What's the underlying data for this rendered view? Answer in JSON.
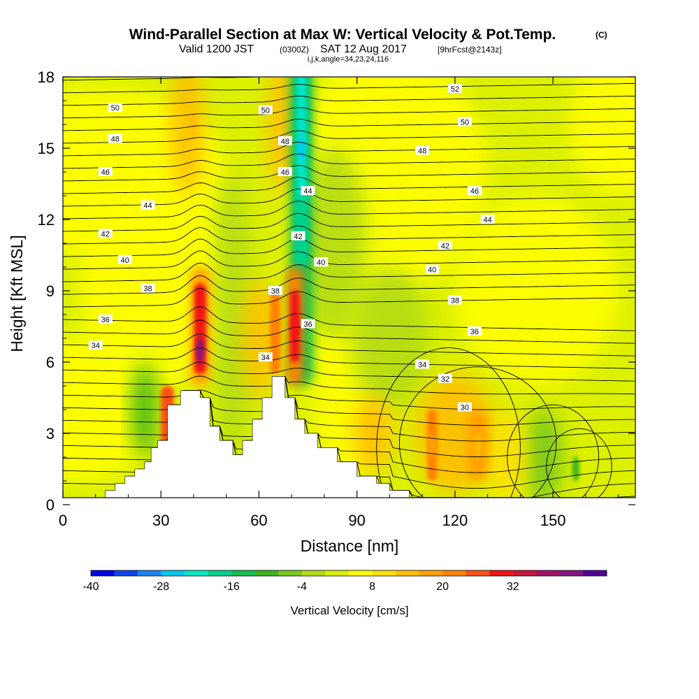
{
  "title": {
    "main": "Wind-Parallel Section at Max W: Vertical Velocity & Pot.Temp.",
    "unit_tag": "(C)",
    "valid_prefix": "Valid 1200 JST",
    "valid_utc": "(0300Z)",
    "valid_date": "SAT 12 Aug 2017",
    "forecast": "[9hrFcst@2143z]",
    "indices": "i,j,k,angle=34,23,24,116"
  },
  "chart_data": {
    "type": "heatmap",
    "xlabel": "Distance [nm]",
    "ylabel": "Height [Kft MSL]",
    "xlim": [
      0,
      175
    ],
    "ylim": [
      0,
      18
    ],
    "xticks": [
      0,
      30,
      60,
      90,
      120,
      150
    ],
    "yticks": [
      0,
      3,
      6,
      9,
      12,
      15,
      18
    ],
    "colorbar": {
      "title": "Vertical Velocity [cm/s]",
      "labels": [
        "-40",
        "-28",
        "-16",
        "-4",
        "8",
        "20",
        "32"
      ],
      "colors": [
        "#0000e6",
        "#0a46f0",
        "#1e82f0",
        "#00c8f0",
        "#00e6c8",
        "#00d28c",
        "#14be50",
        "#3cb41e",
        "#78c81e",
        "#b4dc14",
        "#dcf000",
        "#ffff00",
        "#ffe100",
        "#ffbe00",
        "#ffa000",
        "#ff8200",
        "#ff5014",
        "#f01414",
        "#c8143c",
        "#a01464",
        "#821482",
        "#500096"
      ]
    },
    "w_features": [
      {
        "x": 42,
        "z": 6.5,
        "w": 38
      },
      {
        "x": 71,
        "z": 7.5,
        "w": 28
      },
      {
        "x": 65,
        "z": 7.5,
        "w": 20
      },
      {
        "x": 73,
        "z": 15,
        "w": -30
      },
      {
        "x": 40,
        "z": 16,
        "w": 12
      },
      {
        "x": 113,
        "z": 2.5,
        "w": 14
      },
      {
        "x": 127,
        "z": 2.5,
        "w": 10
      },
      {
        "x": 157,
        "z": 1.5,
        "w": -12
      }
    ],
    "theta_labels": [
      {
        "v": "50",
        "x": 16,
        "z": 16.7
      },
      {
        "v": "50",
        "x": 62,
        "z": 16.6
      },
      {
        "v": "52",
        "x": 120,
        "z": 17.5
      },
      {
        "v": "50",
        "x": 123,
        "z": 16.1
      },
      {
        "v": "48",
        "x": 16,
        "z": 15.4
      },
      {
        "v": "48",
        "x": 68,
        "z": 15.3
      },
      {
        "v": "48",
        "x": 110,
        "z": 14.9
      },
      {
        "v": "46",
        "x": 13,
        "z": 14.0
      },
      {
        "v": "46",
        "x": 68,
        "z": 14.0
      },
      {
        "v": "46",
        "x": 126,
        "z": 13.2
      },
      {
        "v": "44",
        "x": 75,
        "z": 13.2
      },
      {
        "v": "44",
        "x": 26,
        "z": 12.6
      },
      {
        "v": "44",
        "x": 130,
        "z": 12.0
      },
      {
        "v": "42",
        "x": 13,
        "z": 11.4
      },
      {
        "v": "42",
        "x": 72,
        "z": 11.3
      },
      {
        "v": "42",
        "x": 117,
        "z": 10.9
      },
      {
        "v": "40",
        "x": 19,
        "z": 10.3
      },
      {
        "v": "40",
        "x": 79,
        "z": 10.2
      },
      {
        "v": "40",
        "x": 113,
        "z": 9.9
      },
      {
        "v": "38",
        "x": 26,
        "z": 9.1
      },
      {
        "v": "38",
        "x": 65,
        "z": 9.0
      },
      {
        "v": "38",
        "x": 120,
        "z": 8.6
      },
      {
        "v": "36",
        "x": 13,
        "z": 7.8
      },
      {
        "v": "36",
        "x": 75,
        "z": 7.6
      },
      {
        "v": "36",
        "x": 126,
        "z": 7.3
      },
      {
        "v": "34",
        "x": 10,
        "z": 6.7
      },
      {
        "v": "34",
        "x": 62,
        "z": 6.2
      },
      {
        "v": "34",
        "x": 110,
        "z": 5.9
      },
      {
        "v": "32",
        "x": 117,
        "z": 5.3
      },
      {
        "v": "30",
        "x": 123,
        "z": 4.1
      }
    ],
    "terrain": [
      [
        0,
        0.3
      ],
      [
        13,
        0.3
      ],
      [
        13,
        0.6
      ],
      [
        16,
        0.6
      ],
      [
        16,
        0.9
      ],
      [
        19,
        0.9
      ],
      [
        19,
        1.2
      ],
      [
        22,
        1.2
      ],
      [
        22,
        1.5
      ],
      [
        25,
        1.5
      ],
      [
        25,
        1.8
      ],
      [
        27,
        1.8
      ],
      [
        27,
        2.4
      ],
      [
        29,
        2.4
      ],
      [
        29,
        2.7
      ],
      [
        32,
        2.7
      ],
      [
        32,
        4.2
      ],
      [
        36,
        4.2
      ],
      [
        36,
        4.8
      ],
      [
        42,
        4.8
      ],
      [
        42,
        4.5
      ],
      [
        45,
        4.5
      ],
      [
        45,
        3.3
      ],
      [
        48,
        3.3
      ],
      [
        48,
        2.7
      ],
      [
        52,
        2.7
      ],
      [
        52,
        2.1
      ],
      [
        55,
        2.1
      ],
      [
        55,
        2.7
      ],
      [
        58,
        2.7
      ],
      [
        58,
        3.6
      ],
      [
        61,
        3.6
      ],
      [
        61,
        4.5
      ],
      [
        64,
        4.5
      ],
      [
        64,
        5.4
      ],
      [
        68,
        5.4
      ],
      [
        68,
        4.5
      ],
      [
        71,
        4.5
      ],
      [
        71,
        3.6
      ],
      [
        74,
        3.6
      ],
      [
        74,
        3.0
      ],
      [
        78,
        3.0
      ],
      [
        78,
        2.4
      ],
      [
        84,
        2.4
      ],
      [
        84,
        1.8
      ],
      [
        90,
        1.8
      ],
      [
        90,
        1.2
      ],
      [
        96,
        1.2
      ],
      [
        96,
        0.9
      ],
      [
        100,
        0.9
      ],
      [
        100,
        0.6
      ],
      [
        106,
        0.6
      ],
      [
        106,
        0.3
      ],
      [
        175,
        0.3
      ]
    ]
  }
}
